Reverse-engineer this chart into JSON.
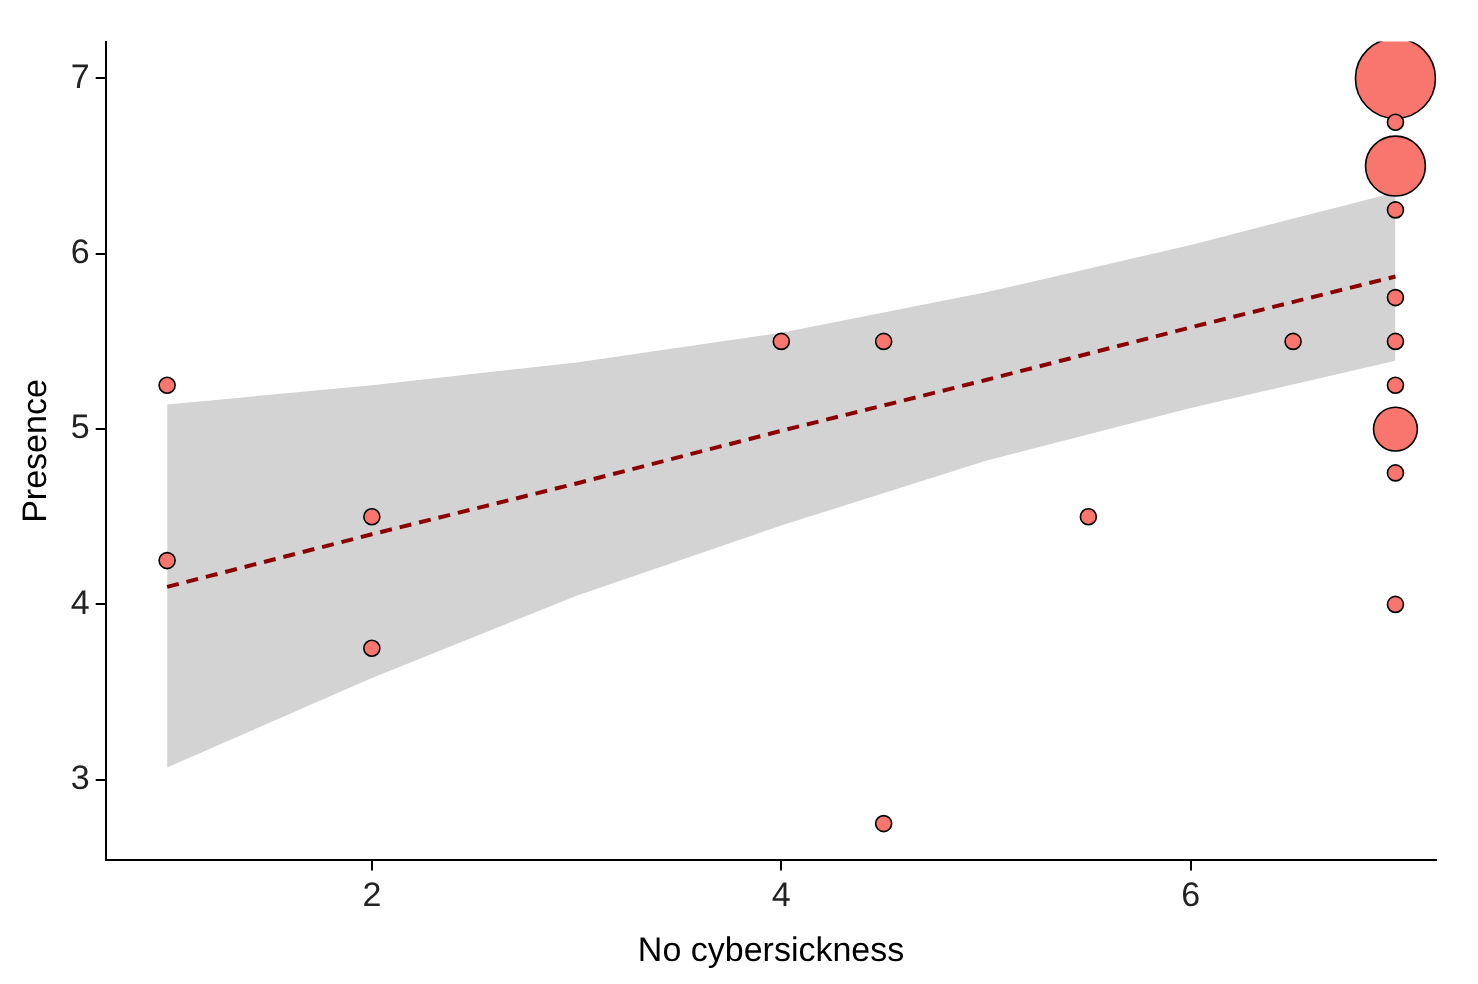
{
  "chart_data": {
    "type": "bubble",
    "xlabel": "No cybersickness",
    "ylabel": "Presence",
    "xlim": [
      0.7,
      7.2
    ],
    "ylim": [
      2.54,
      7.21
    ],
    "xticks": [
      2,
      4,
      6
    ],
    "yticks": [
      3,
      4,
      5,
      6,
      7
    ],
    "grid": false,
    "series": [
      {
        "type": "line",
        "color": "#8b0000",
        "line_style": "dashed",
        "marker": "none",
        "x": [
          1,
          2,
          3,
          4,
          5,
          6,
          7
        ],
        "values": [
          4.1,
          4.4,
          4.69,
          4.99,
          5.28,
          5.58,
          5.87
        ],
        "lower": [
          3.07,
          3.58,
          4.05,
          4.45,
          4.82,
          5.12,
          5.39
        ],
        "upper": [
          5.14,
          5.25,
          5.38,
          5.55,
          5.78,
          6.05,
          6.35
        ]
      },
      {
        "type": "bubble",
        "color": "#f8766d",
        "marker": "circle",
        "x": [
          1,
          1,
          2,
          2,
          4,
          4.5,
          4.5,
          5.5,
          6.5,
          7,
          7,
          7,
          7,
          7,
          7,
          7,
          7,
          7,
          7
        ],
        "values": [
          5.25,
          4.25,
          4.5,
          3.75,
          5.5,
          5.5,
          2.75,
          4.5,
          5.5,
          7,
          6.75,
          6.5,
          6.25,
          5.75,
          5.5,
          5.25,
          5,
          4.75,
          4
        ],
        "sizes": [
          0.04,
          0.04,
          0.04,
          0.04,
          0.04,
          0.04,
          0.04,
          0.04,
          0.04,
          1,
          0.04,
          0.56,
          0.04,
          0.04,
          0.04,
          0.04,
          0.3,
          0.04,
          0.04
        ]
      }
    ]
  }
}
